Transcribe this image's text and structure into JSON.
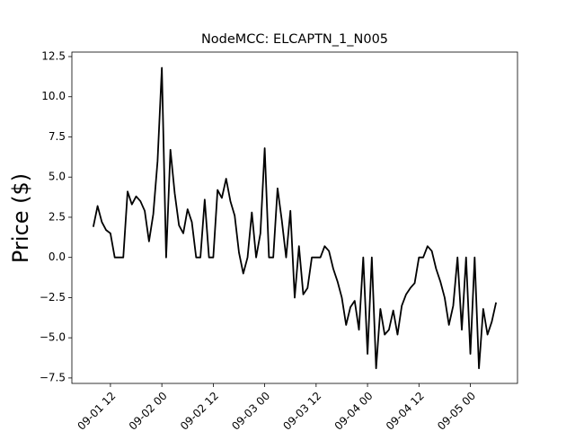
{
  "chart_data": {
    "type": "line",
    "title": "NodeMCC: ELCAPTN_1_N005",
    "ylabel": "Price ($)",
    "color": "#000000",
    "x": [
      "09-01 08",
      "09-01 09",
      "09-01 10",
      "09-01 11",
      "09-01 12",
      "09-01 13",
      "09-01 14",
      "09-01 15",
      "09-01 16",
      "09-01 17",
      "09-01 18",
      "09-01 19",
      "09-01 20",
      "09-01 21",
      "09-01 22",
      "09-01 23",
      "09-02 00",
      "09-02 01",
      "09-02 02",
      "09-02 03",
      "09-02 04",
      "09-02 05",
      "09-02 06",
      "09-02 07",
      "09-02 08",
      "09-02 09",
      "09-02 10",
      "09-02 11",
      "09-02 12",
      "09-02 13",
      "09-02 14",
      "09-02 15",
      "09-02 16",
      "09-02 17",
      "09-02 18",
      "09-02 19",
      "09-02 20",
      "09-02 21",
      "09-02 22",
      "09-02 23",
      "09-03 00",
      "09-03 01",
      "09-03 02",
      "09-03 03",
      "09-03 04",
      "09-03 05",
      "09-03 06",
      "09-03 07",
      "09-03 08",
      "09-03 09",
      "09-03 10",
      "09-03 11",
      "09-03 12",
      "09-03 13",
      "09-03 14",
      "09-03 15",
      "09-03 16",
      "09-03 17",
      "09-03 18",
      "09-03 19",
      "09-03 20",
      "09-03 21",
      "09-03 22",
      "09-03 23",
      "09-04 00",
      "09-04 01",
      "09-04 02",
      "09-04 03",
      "09-04 04",
      "09-04 05",
      "09-04 06",
      "09-04 07",
      "09-04 08",
      "09-04 09",
      "09-04 10",
      "09-04 11",
      "09-04 12",
      "09-04 13",
      "09-04 14",
      "09-04 15",
      "09-04 16",
      "09-04 17",
      "09-04 18",
      "09-04 19",
      "09-04 20",
      "09-04 21",
      "09-04 22",
      "09-04 23",
      "09-05 00",
      "09-05 01",
      "09-05 02",
      "09-05 03",
      "09-05 04",
      "09-05 05",
      "09-05 06"
    ],
    "values": [
      1.9,
      3.2,
      2.2,
      1.7,
      1.5,
      0,
      0,
      0,
      4.1,
      3.3,
      3.8,
      3.5,
      2.9,
      1.0,
      2.7,
      6.0,
      11.8,
      0,
      6.7,
      4.0,
      2.0,
      1.5,
      3.0,
      2.2,
      0,
      0,
      3.6,
      0,
      0,
      4.2,
      3.7,
      4.9,
      3.5,
      2.6,
      0.3,
      -1.0,
      0,
      2.8,
      0,
      1.5,
      6.8,
      0,
      0,
      4.3,
      2.3,
      0,
      2.9,
      -2.5,
      0.7,
      -2.3,
      -1.9,
      0,
      0,
      0,
      0.7,
      0.4,
      -0.7,
      -1.5,
      -2.5,
      -4.2,
      -3.1,
      -2.7,
      -4.5,
      0,
      -6.0,
      0,
      -6.9,
      -3.2,
      -4.8,
      -4.5,
      -3.3,
      -4.8,
      -3.0,
      -2.3,
      -1.9,
      -1.6,
      0,
      0,
      0.7,
      0.4,
      -0.7,
      -1.5,
      -2.5,
      -4.2,
      -3.0,
      0,
      -4.5,
      0,
      -6.0,
      0,
      -6.9,
      -3.2,
      -4.8,
      -4.0,
      -2.8
    ],
    "xlim": [
      "09-01 03",
      "09-05 11"
    ],
    "xticks": [
      "09-01 12",
      "09-02 00",
      "09-02 12",
      "09-03 00",
      "09-03 12",
      "09-04 00",
      "09-04 12",
      "09-05 00"
    ],
    "ylim": [
      -7.84,
      12.78
    ],
    "yticks": [
      {
        "value": -7.5,
        "label": "−7.5"
      },
      {
        "value": -5,
        "label": "−5.0"
      },
      {
        "value": -2.5,
        "label": "−2.5"
      },
      {
        "value": 0,
        "label": "0.0"
      },
      2.5,
      {
        "value": 5,
        "label": "5.0"
      },
      7.5,
      {
        "value": 10,
        "label": "10.0"
      },
      12.5
    ]
  }
}
